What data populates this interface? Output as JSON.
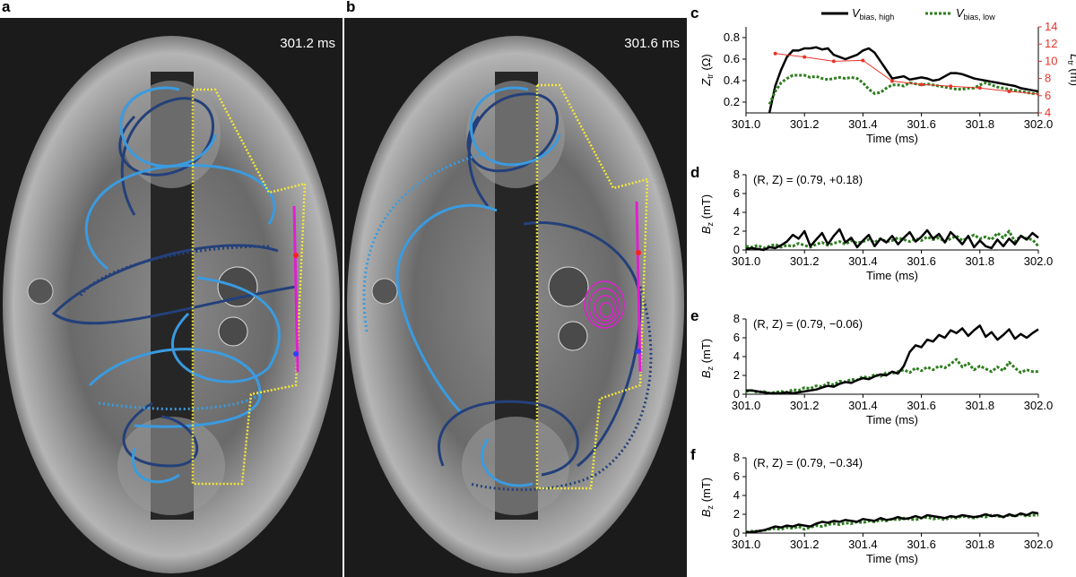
{
  "panels": {
    "a": {
      "letter": "a",
      "timestamp": "301.2 ms"
    },
    "b": {
      "letter": "b",
      "timestamp": "301.6 ms"
    }
  },
  "colors": {
    "v_high": "#000000",
    "v_low": "#2e7d1e",
    "ltr": "#e8342a",
    "light_blue_loop": "#3a9be0",
    "dark_blue_loop": "#24407a",
    "yellow_boundary": "#f2e63a",
    "magenta": "#e020d0"
  },
  "legend": {
    "high": "V",
    "high_sub": "bias, high",
    "low": "V",
    "low_sub": "bias, low"
  },
  "chart_data": [
    {
      "panel": "c",
      "type": "line",
      "xlabel": "Time (ms)",
      "ylabel_left": "Z",
      "ylabel_left_sub": "tr",
      "ylabel_left_unit": "(Ω)",
      "ylabel_right": "L",
      "ylabel_right_sub": "tr",
      "ylabel_right_unit": "(m)",
      "xlim": [
        301.0,
        302.0
      ],
      "ylim_left": [
        0.1,
        0.9
      ],
      "ylim_right": [
        4,
        14
      ],
      "xticks": [
        "301.0",
        "301.2",
        "301.4",
        "301.6",
        "301.8",
        "302.0"
      ],
      "yticks_left": [
        "0.2",
        "0.4",
        "0.6",
        "0.8"
      ],
      "yticks_right": [
        "4",
        "6",
        "8",
        "10",
        "12",
        "14"
      ],
      "series": [
        {
          "name": "V_bias, high",
          "axis": "left",
          "x": [
            301.08,
            301.1,
            301.12,
            301.14,
            301.16,
            301.18,
            301.2,
            301.22,
            301.24,
            301.26,
            301.28,
            301.3,
            301.32,
            301.34,
            301.36,
            301.38,
            301.4,
            301.42,
            301.44,
            301.46,
            301.48,
            301.5,
            301.52,
            301.54,
            301.56,
            301.58,
            301.6,
            301.62,
            301.64,
            301.66,
            301.68,
            301.7,
            301.72,
            301.74,
            301.76,
            301.78,
            301.8,
            301.82,
            301.84,
            301.86,
            301.88,
            301.9,
            301.92,
            301.94,
            301.96,
            301.98,
            302.0
          ],
          "y": [
            0.1,
            0.35,
            0.5,
            0.62,
            0.68,
            0.68,
            0.7,
            0.7,
            0.71,
            0.69,
            0.7,
            0.64,
            0.62,
            0.6,
            0.62,
            0.64,
            0.68,
            0.7,
            0.66,
            0.58,
            0.5,
            0.42,
            0.43,
            0.44,
            0.41,
            0.42,
            0.43,
            0.42,
            0.4,
            0.41,
            0.44,
            0.47,
            0.47,
            0.46,
            0.44,
            0.42,
            0.41,
            0.4,
            0.39,
            0.38,
            0.37,
            0.36,
            0.35,
            0.33,
            0.32,
            0.31,
            0.3
          ]
        },
        {
          "name": "V_bias, low",
          "axis": "left",
          "x": [
            301.08,
            301.1,
            301.12,
            301.14,
            301.16,
            301.18,
            301.2,
            301.22,
            301.24,
            301.26,
            301.28,
            301.3,
            301.32,
            301.34,
            301.36,
            301.38,
            301.4,
            301.42,
            301.44,
            301.46,
            301.48,
            301.5,
            301.52,
            301.54,
            301.56,
            301.58,
            301.6,
            301.62,
            301.64,
            301.66,
            301.68,
            301.7,
            301.72,
            301.74,
            301.76,
            301.78,
            301.8,
            301.82,
            301.84,
            301.86,
            301.88,
            301.9,
            301.92,
            301.94,
            301.96,
            301.98,
            302.0
          ],
          "y": [
            0.18,
            0.3,
            0.38,
            0.42,
            0.45,
            0.45,
            0.45,
            0.43,
            0.44,
            0.42,
            0.41,
            0.42,
            0.43,
            0.42,
            0.43,
            0.42,
            0.38,
            0.32,
            0.28,
            0.29,
            0.33,
            0.36,
            0.36,
            0.35,
            0.38,
            0.37,
            0.36,
            0.37,
            0.36,
            0.35,
            0.34,
            0.33,
            0.32,
            0.32,
            0.33,
            0.33,
            0.36,
            0.38,
            0.36,
            0.34,
            0.33,
            0.32,
            0.31,
            0.3,
            0.29,
            0.28,
            0.28
          ]
        },
        {
          "name": "L_tr",
          "axis": "right",
          "x": [
            301.1,
            301.2,
            301.3,
            301.4,
            301.5,
            301.6,
            301.7,
            301.8,
            301.9,
            302.0
          ],
          "y": [
            10.9,
            10.5,
            10.0,
            10.1,
            7.7,
            7.3,
            7.1,
            6.9,
            6.5,
            6.2
          ]
        }
      ]
    },
    {
      "panel": "d",
      "type": "line",
      "annotation": "(R, Z) = (0.79, +0.18)",
      "xlabel": "Time (ms)",
      "ylabel": "B",
      "ylabel_sub": "z",
      "ylabel_unit": "(mT)",
      "xlim": [
        301.0,
        302.0
      ],
      "ylim": [
        0,
        8
      ],
      "xticks": [
        "301.0",
        "301.2",
        "301.4",
        "301.6",
        "301.8",
        "302.0"
      ],
      "yticks": [
        "0",
        "2",
        "4",
        "6",
        "8"
      ],
      "series": [
        {
          "name": "V_bias, high",
          "x": [
            301.0,
            301.02,
            301.04,
            301.06,
            301.08,
            301.1,
            301.12,
            301.14,
            301.16,
            301.18,
            301.2,
            301.22,
            301.24,
            301.26,
            301.28,
            301.3,
            301.32,
            301.34,
            301.36,
            301.38,
            301.4,
            301.42,
            301.44,
            301.46,
            301.48,
            301.5,
            301.52,
            301.54,
            301.56,
            301.58,
            301.6,
            301.62,
            301.64,
            301.66,
            301.68,
            301.7,
            301.72,
            301.74,
            301.76,
            301.78,
            301.8,
            301.82,
            301.84,
            301.86,
            301.88,
            301.9,
            301.92,
            301.94,
            301.96,
            301.98,
            302.0
          ],
          "y": [
            0.1,
            0.2,
            0.1,
            0.0,
            0.3,
            0.2,
            0.5,
            0.9,
            1.6,
            1.2,
            2.0,
            0.4,
            1.1,
            1.8,
            0.6,
            1.5,
            2.2,
            0.8,
            1.3,
            0.3,
            1.0,
            1.6,
            0.4,
            1.2,
            0.8,
            1.5,
            0.6,
            1.3,
            1.9,
            0.9,
            1.4,
            2.1,
            1.2,
            1.7,
            0.8,
            1.9,
            1.3,
            0.6,
            1.5,
            0.3,
            1.0,
            0.4,
            0.2,
            1.1,
            0.4,
            1.2,
            0.6,
            1.5,
            1.1,
            1.8,
            1.3
          ]
        },
        {
          "name": "V_bias, low",
          "x": [
            301.0,
            301.02,
            301.04,
            301.06,
            301.08,
            301.1,
            301.12,
            301.14,
            301.16,
            301.18,
            301.2,
            301.22,
            301.24,
            301.26,
            301.28,
            301.3,
            301.32,
            301.34,
            301.36,
            301.38,
            301.4,
            301.42,
            301.44,
            301.46,
            301.48,
            301.5,
            301.52,
            301.54,
            301.56,
            301.58,
            301.6,
            301.62,
            301.64,
            301.66,
            301.68,
            301.7,
            301.72,
            301.74,
            301.76,
            301.78,
            301.8,
            301.82,
            301.84,
            301.86,
            301.88,
            301.9,
            301.92,
            301.94,
            301.96,
            301.98,
            302.0
          ],
          "y": [
            0.4,
            0.3,
            0.5,
            0.2,
            0.4,
            0.6,
            0.3,
            0.5,
            0.4,
            0.7,
            0.5,
            0.3,
            0.6,
            0.8,
            0.5,
            0.7,
            0.9,
            0.6,
            1.0,
            0.7,
            0.9,
            1.1,
            0.8,
            1.2,
            0.9,
            1.0,
            1.3,
            1.1,
            0.9,
            1.2,
            1.0,
            1.4,
            1.1,
            1.3,
            0.9,
            1.2,
            1.5,
            1.0,
            1.3,
            1.6,
            1.2,
            1.4,
            1.1,
            1.8,
            1.3,
            2.0,
            0.9,
            1.5,
            1.2,
            1.1,
            0.4
          ]
        }
      ]
    },
    {
      "panel": "e",
      "type": "line",
      "annotation": "(R, Z) = (0.79, −0.06)",
      "xlabel": "Time (ms)",
      "ylabel": "B",
      "ylabel_sub": "z",
      "ylabel_unit": "(mT)",
      "xlim": [
        301.0,
        302.0
      ],
      "ylim": [
        0,
        8
      ],
      "xticks": [
        "301.0",
        "301.2",
        "301.4",
        "301.6",
        "301.8",
        "302.0"
      ],
      "yticks": [
        "0",
        "2",
        "4",
        "6",
        "8"
      ],
      "series": [
        {
          "name": "V_bias, high",
          "x": [
            301.0,
            301.02,
            301.04,
            301.06,
            301.08,
            301.1,
            301.12,
            301.14,
            301.16,
            301.18,
            301.2,
            301.22,
            301.24,
            301.26,
            301.28,
            301.3,
            301.32,
            301.34,
            301.36,
            301.38,
            301.4,
            301.42,
            301.44,
            301.46,
            301.48,
            301.5,
            301.52,
            301.54,
            301.56,
            301.58,
            301.6,
            301.62,
            301.64,
            301.66,
            301.68,
            301.7,
            301.72,
            301.74,
            301.76,
            301.78,
            301.8,
            301.82,
            301.84,
            301.86,
            301.88,
            301.9,
            301.92,
            301.94,
            301.96,
            301.98,
            302.0
          ],
          "y": [
            0.4,
            0.4,
            0.3,
            0.2,
            0.1,
            0.1,
            0.1,
            0.2,
            0.1,
            0.2,
            0.3,
            0.4,
            0.5,
            0.7,
            0.9,
            0.8,
            1.1,
            1.3,
            1.2,
            1.5,
            1.7,
            1.6,
            1.9,
            2.1,
            2.0,
            2.4,
            2.2,
            3.0,
            4.5,
            5.2,
            5.0,
            5.8,
            5.6,
            6.3,
            6.0,
            6.8,
            6.5,
            7.0,
            6.2,
            6.8,
            7.3,
            6.1,
            6.6,
            5.8,
            6.3,
            6.9,
            5.9,
            6.4,
            6.0,
            6.5,
            6.9
          ]
        },
        {
          "name": "V_bias, low",
          "x": [
            301.0,
            301.02,
            301.04,
            301.06,
            301.08,
            301.1,
            301.12,
            301.14,
            301.16,
            301.18,
            301.2,
            301.22,
            301.24,
            301.26,
            301.28,
            301.3,
            301.32,
            301.34,
            301.36,
            301.38,
            301.4,
            301.42,
            301.44,
            301.46,
            301.48,
            301.5,
            301.52,
            301.54,
            301.56,
            301.58,
            301.6,
            301.62,
            301.64,
            301.66,
            301.68,
            301.7,
            301.72,
            301.74,
            301.76,
            301.78,
            301.8,
            301.82,
            301.84,
            301.86,
            301.88,
            301.9,
            301.92,
            301.94,
            301.96,
            301.98,
            302.0
          ],
          "y": [
            0.3,
            0.4,
            0.2,
            0.3,
            0.1,
            0.2,
            0.3,
            0.2,
            0.5,
            0.4,
            0.7,
            0.6,
            0.9,
            0.8,
            1.2,
            1.0,
            1.4,
            1.3,
            1.6,
            1.5,
            1.9,
            1.7,
            2.1,
            1.9,
            2.3,
            2.2,
            2.4,
            2.6,
            2.3,
            2.8,
            2.5,
            2.9,
            2.6,
            3.0,
            2.8,
            3.2,
            3.7,
            2.9,
            3.3,
            2.6,
            3.0,
            2.7,
            2.4,
            2.9,
            2.5,
            3.4,
            2.8,
            2.3,
            2.6,
            2.4,
            2.4
          ]
        }
      ]
    },
    {
      "panel": "f",
      "type": "line",
      "annotation": "(R, Z) = (0.79, −0.34)",
      "xlabel": "Time (ms)",
      "ylabel": "B",
      "ylabel_sub": "z",
      "ylabel_unit": "(mT)",
      "xlim": [
        301.0,
        302.0
      ],
      "ylim": [
        0,
        8
      ],
      "xticks": [
        "301.0",
        "301.2",
        "301.4",
        "301.6",
        "301.8",
        "302.0"
      ],
      "yticks": [
        "0",
        "2",
        "4",
        "6",
        "8"
      ],
      "series": [
        {
          "name": "V_bias, high",
          "x": [
            301.0,
            301.02,
            301.04,
            301.06,
            301.08,
            301.1,
            301.12,
            301.14,
            301.16,
            301.18,
            301.2,
            301.22,
            301.24,
            301.26,
            301.28,
            301.3,
            301.32,
            301.34,
            301.36,
            301.38,
            301.4,
            301.42,
            301.44,
            301.46,
            301.48,
            301.5,
            301.52,
            301.54,
            301.56,
            301.58,
            301.6,
            301.62,
            301.64,
            301.66,
            301.68,
            301.7,
            301.72,
            301.74,
            301.76,
            301.78,
            301.8,
            301.82,
            301.84,
            301.86,
            301.88,
            301.9,
            301.92,
            301.94,
            301.96,
            301.98,
            302.0
          ],
          "y": [
            0.1,
            0.1,
            0.2,
            0.3,
            0.5,
            0.7,
            0.6,
            0.8,
            0.7,
            0.9,
            0.8,
            0.7,
            1.0,
            1.2,
            1.1,
            1.3,
            1.2,
            1.4,
            1.3,
            1.2,
            1.5,
            1.4,
            1.3,
            1.6,
            1.4,
            1.5,
            1.7,
            1.5,
            1.6,
            1.8,
            1.6,
            1.9,
            1.8,
            1.7,
            1.6,
            1.8,
            1.7,
            1.9,
            1.8,
            1.7,
            1.8,
            2.0,
            1.8,
            1.9,
            1.7,
            2.0,
            1.8,
            2.1,
            1.9,
            2.2,
            2.1
          ]
        },
        {
          "name": "V_bias, low",
          "x": [
            301.0,
            301.02,
            301.04,
            301.06,
            301.08,
            301.1,
            301.12,
            301.14,
            301.16,
            301.18,
            301.2,
            301.22,
            301.24,
            301.26,
            301.28,
            301.3,
            301.32,
            301.34,
            301.36,
            301.38,
            301.4,
            301.42,
            301.44,
            301.46,
            301.48,
            301.5,
            301.52,
            301.54,
            301.56,
            301.58,
            301.6,
            301.62,
            301.64,
            301.66,
            301.68,
            301.7,
            301.72,
            301.74,
            301.76,
            301.78,
            301.8,
            301.82,
            301.84,
            301.86,
            301.88,
            301.9,
            301.92,
            301.94,
            301.96,
            301.98,
            302.0
          ],
          "y": [
            0.1,
            0.2,
            0.2,
            0.3,
            0.4,
            0.5,
            0.4,
            0.6,
            0.5,
            0.7,
            0.4,
            0.6,
            0.8,
            0.7,
            0.9,
            1.0,
            0.9,
            1.1,
            1.0,
            1.2,
            1.1,
            1.3,
            1.2,
            1.4,
            1.3,
            1.5,
            1.4,
            1.6,
            1.5,
            1.4,
            1.6,
            1.7,
            1.5,
            1.6,
            1.4,
            1.7,
            1.6,
            1.8,
            1.7,
            1.6,
            1.8,
            1.7,
            1.9,
            1.8,
            1.7,
            1.9,
            1.8,
            2.0,
            1.8,
            1.9,
            1.9
          ]
        }
      ]
    }
  ]
}
